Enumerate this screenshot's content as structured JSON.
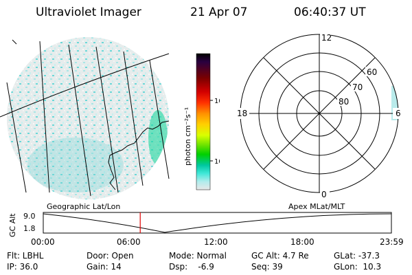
{
  "header": {
    "title": "Ultraviolet Imager",
    "date": "21 Apr 07",
    "time": "06:40:37 UT"
  },
  "colorbar": {
    "unit_label": "photon cm⁻²s⁻¹",
    "ticks": [
      "100",
      "10"
    ],
    "colors": [
      "#000000",
      "#2a0040",
      "#7a0000",
      "#d20000",
      "#ff3000",
      "#ff9000",
      "#ffd000",
      "#d8ff00",
      "#60e000",
      "#00d000",
      "#00c8a0",
      "#40e8d8",
      "#b0ecec",
      "#e8e8e8"
    ]
  },
  "polar_plot": {
    "mlt_labels": [
      "12",
      "18",
      "6",
      "0"
    ],
    "lat_labels": [
      "60",
      "70",
      "80"
    ]
  },
  "timeline": {
    "left_title": "Geographic Lat/Lon",
    "right_title": "Apex  MLat/MLT",
    "y_axis_label": "GC Alt",
    "y_ticks": [
      "9.0",
      "1.8"
    ],
    "x_ticks": [
      "00:00",
      "06:00",
      "12:00",
      "18:00",
      "23:59"
    ],
    "current_time_marker_hours": 6.68,
    "marker_color": "#e00000"
  },
  "info": {
    "flt": "Flt: LBHL",
    "ip": "IP: 36.0",
    "door": "Door: Open",
    "gain": "Gain: 14",
    "mode": "Mode: Normal",
    "dsp": "Dsp:    -6.9",
    "gc_alt": "GC Alt: 4.7 Re",
    "seq": "Seq: 39",
    "glat": "GLat: -37.3",
    "glon": "GLon:  10.3"
  }
}
